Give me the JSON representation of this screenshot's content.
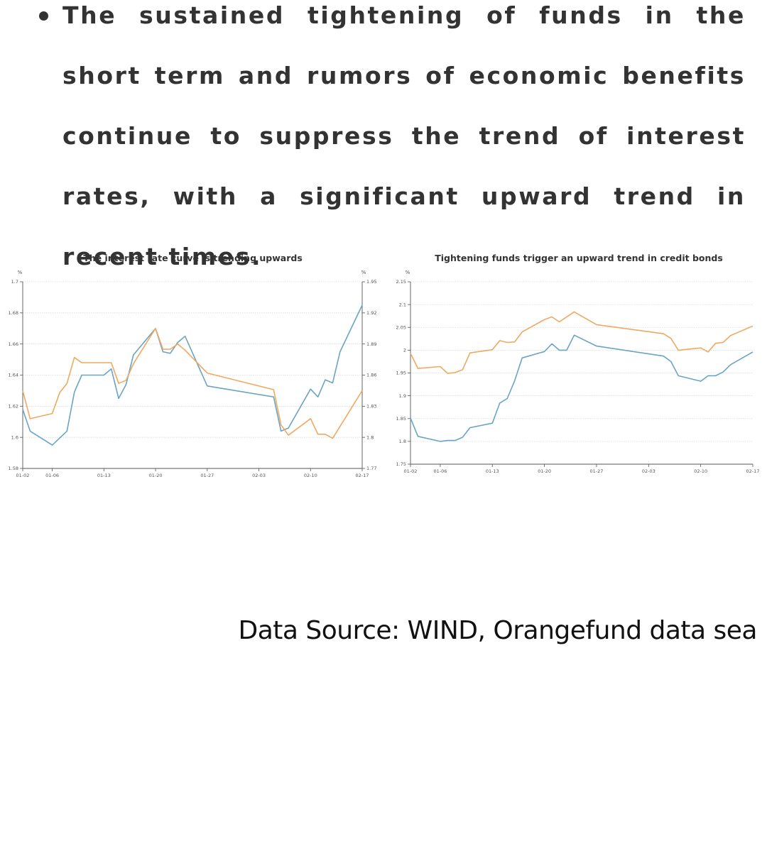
{
  "bullet": {
    "text": "The sustained tightening of funds in the short term and rumors of economic benefits continue to suppress the trend of interest rates, with a significant upward trend in recent times."
  },
  "source": "Data Source: WIND, Orangefund data sea",
  "colors": {
    "orange": "#f0a860",
    "blue": "#6aa4c4",
    "grid": "#d8d8d8",
    "axis": "#555555"
  },
  "chart_data": [
    {
      "type": "line",
      "title": "The interest rate curve is trending upwards",
      "left_unit": "%",
      "right_unit": "%",
      "grid": true,
      "x_ticks": [
        "01-02",
        "01-06",
        "01-13",
        "01-20",
        "01-27",
        "02-03",
        "02-10",
        "02-17"
      ],
      "y_left": {
        "ticks": [
          "1.7",
          "1.68",
          "1.66",
          "1.64",
          "1.62",
          "1.6",
          "1.58"
        ],
        "range": [
          1.58,
          1.7
        ]
      },
      "y_right": {
        "ticks": [
          "1.95",
          "1.92",
          "1.89",
          "1.86",
          "1.83",
          "1.8",
          "1.77"
        ],
        "range": [
          1.77,
          1.95
        ]
      },
      "series": [
        {
          "color": "#6aa4c4",
          "axis": "left",
          "points": [
            [
              0,
              1.618
            ],
            [
              1,
              1.604
            ],
            [
              4,
              1.595
            ],
            [
              6,
              1.604
            ],
            [
              7,
              1.629
            ],
            [
              8,
              1.64
            ],
            [
              11,
              1.64
            ],
            [
              12,
              1.644
            ],
            [
              13,
              1.625
            ],
            [
              14,
              1.634
            ],
            [
              15,
              1.653
            ],
            [
              18,
              1.67
            ],
            [
              19,
              1.655
            ],
            [
              20,
              1.654
            ],
            [
              21,
              1.661
            ],
            [
              22,
              1.665
            ],
            [
              25,
              1.633
            ],
            [
              34,
              1.626
            ],
            [
              35,
              1.604
            ],
            [
              36,
              1.606
            ],
            [
              39,
              1.631
            ],
            [
              40,
              1.626
            ],
            [
              41,
              1.637
            ],
            [
              42,
              1.635
            ],
            [
              43,
              1.655
            ],
            [
              46,
              1.685
            ]
          ]
        },
        {
          "color": "#f0a860",
          "axis": "right",
          "points": [
            [
              0,
              1.845
            ],
            [
              1,
              1.818
            ],
            [
              4,
              1.823
            ],
            [
              5,
              1.843
            ],
            [
              6,
              1.852
            ],
            [
              7,
              1.877
            ],
            [
              8,
              1.872
            ],
            [
              12,
              1.872
            ],
            [
              13,
              1.852
            ],
            [
              14,
              1.855
            ],
            [
              15,
              1.871
            ],
            [
              18,
              1.905
            ],
            [
              19,
              1.885
            ],
            [
              20,
              1.885
            ],
            [
              21,
              1.89
            ],
            [
              22,
              1.884
            ],
            [
              25,
              1.862
            ],
            [
              34,
              1.846
            ],
            [
              35,
              1.812
            ],
            [
              36,
              1.802
            ],
            [
              39,
              1.818
            ],
            [
              40,
              1.803
            ],
            [
              41,
              1.803
            ],
            [
              42,
              1.799
            ],
            [
              46,
              1.845
            ]
          ]
        }
      ]
    },
    {
      "type": "line",
      "title": "Tightening funds trigger an upward trend in credit bonds",
      "left_unit": "%",
      "grid": true,
      "x_ticks": [
        "01-02",
        "01-06",
        "01-13",
        "01-20",
        "01-27",
        "02-03",
        "02-10",
        "02-17"
      ],
      "y_left": {
        "ticks": [
          "2.15",
          "2.1",
          "2.05",
          "2",
          "1.95",
          "1.9",
          "1.85",
          "1.8",
          "1.75"
        ],
        "range": [
          1.75,
          2.15
        ]
      },
      "series": [
        {
          "color": "#f0a860",
          "axis": "left",
          "points": [
            [
              0,
              1.993
            ],
            [
              1,
              1.96
            ],
            [
              4,
              1.964
            ],
            [
              5,
              1.949
            ],
            [
              6,
              1.951
            ],
            [
              7,
              1.957
            ],
            [
              8,
              1.994
            ],
            [
              11,
              2.001
            ],
            [
              12,
              2.021
            ],
            [
              13,
              2.017
            ],
            [
              14,
              2.018
            ],
            [
              15,
              2.04
            ],
            [
              18,
              2.067
            ],
            [
              19,
              2.073
            ],
            [
              20,
              2.062
            ],
            [
              22,
              2.084
            ],
            [
              25,
              2.056
            ],
            [
              34,
              2.036
            ],
            [
              35,
              2.026
            ],
            [
              36,
              2.0
            ],
            [
              39,
              2.005
            ],
            [
              40,
              1.996
            ],
            [
              41,
              2.015
            ],
            [
              42,
              2.017
            ],
            [
              43,
              2.032
            ],
            [
              46,
              2.053
            ]
          ]
        },
        {
          "color": "#6aa4c4",
          "axis": "left",
          "points": [
            [
              0,
              1.851
            ],
            [
              1,
              1.811
            ],
            [
              4,
              1.8
            ],
            [
              5,
              1.802
            ],
            [
              6,
              1.802
            ],
            [
              7,
              1.809
            ],
            [
              8,
              1.83
            ],
            [
              11,
              1.84
            ],
            [
              12,
              1.884
            ],
            [
              13,
              1.894
            ],
            [
              14,
              1.933
            ],
            [
              15,
              1.983
            ],
            [
              18,
              1.997
            ],
            [
              19,
              2.014
            ],
            [
              20,
              2.0
            ],
            [
              21,
              2.0
            ],
            [
              22,
              2.033
            ],
            [
              25,
              2.009
            ],
            [
              34,
              1.987
            ],
            [
              35,
              1.975
            ],
            [
              36,
              1.944
            ],
            [
              39,
              1.932
            ],
            [
              40,
              1.944
            ],
            [
              41,
              1.944
            ],
            [
              42,
              1.952
            ],
            [
              43,
              1.968
            ],
            [
              46,
              1.996
            ]
          ]
        }
      ]
    }
  ]
}
